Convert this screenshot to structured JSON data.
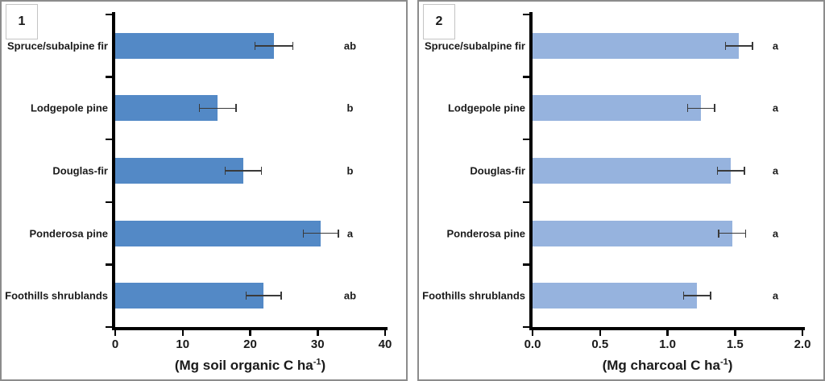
{
  "chart_data": [
    {
      "type": "bar",
      "orientation": "horizontal",
      "panel_label": "1",
      "categories": [
        "Spruce/subalpine fir",
        "Lodgepole pine",
        "Douglas-fir",
        "Ponderosa pine",
        "Foothills shrublands"
      ],
      "values": [
        23.5,
        15.2,
        19.0,
        30.5,
        22.0
      ],
      "errors": [
        2.8,
        2.7,
        2.7,
        2.6,
        2.6
      ],
      "sig_letters": [
        "ab",
        "b",
        "b",
        "a",
        "ab"
      ],
      "xlim": [
        0,
        40
      ],
      "xticks": [
        0,
        10,
        20,
        30,
        40
      ],
      "xtick_labels": [
        "0",
        "10",
        "20",
        "30",
        "40"
      ],
      "xlabel": {
        "prefix": "(Mg soil organic C ha",
        "sup": "-1",
        "suffix": ")"
      },
      "bar_color": "#5389C6",
      "letter_x_frac": 0.87,
      "grid": false,
      "legend": "none"
    },
    {
      "type": "bar",
      "orientation": "horizontal",
      "panel_label": "2",
      "categories": [
        "Spruce/subalpine fir",
        "Lodgepole pine",
        "Douglas-fir",
        "Ponderosa pine",
        "Foothills shrublands"
      ],
      "values": [
        1.53,
        1.25,
        1.47,
        1.48,
        1.22
      ],
      "errors": [
        0.1,
        0.1,
        0.1,
        0.1,
        0.1
      ],
      "sig_letters": [
        "a",
        "a",
        "a",
        "a",
        "a"
      ],
      "xlim": [
        0,
        2.0
      ],
      "xticks": [
        0,
        0.5,
        1.0,
        1.5,
        2.0
      ],
      "xtick_labels": [
        "0.0",
        "0.5",
        "1.0",
        "1.5",
        "2.0"
      ],
      "xlabel": {
        "prefix": "(Mg charcoal C ha",
        "sup": "-1",
        "suffix": ")"
      },
      "bar_color": "#96B3DE",
      "letter_x_frac": 0.9,
      "grid": false,
      "legend": "none"
    }
  ]
}
